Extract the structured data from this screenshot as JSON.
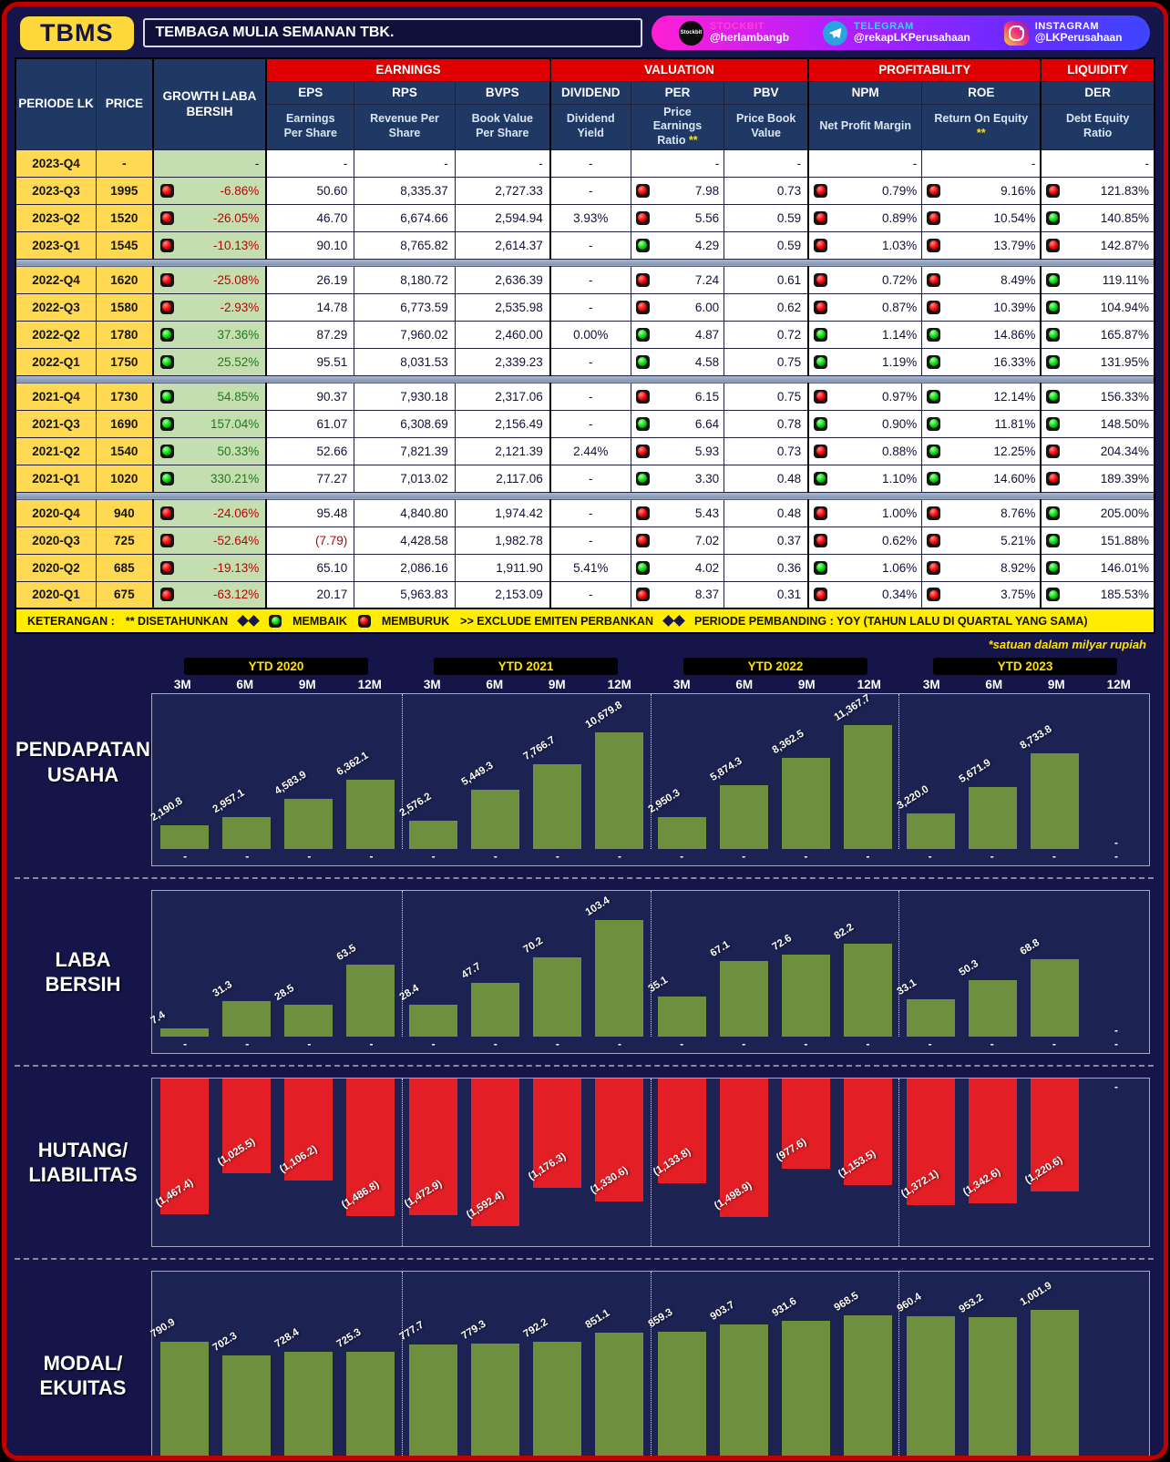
{
  "header": {
    "ticker": "TBMS",
    "company": "TEMBAGA MULIA SEMANAN TBK.",
    "socials": [
      {
        "platform": "STOCKBIT",
        "handle": "@herlambangb",
        "icon": "stockbit-icon"
      },
      {
        "platform": "TELEGRAM",
        "handle": "@rekapLKPerusahaan",
        "icon": "telegram-icon"
      },
      {
        "platform": "INSTAGRAM",
        "handle": "@LKPerusahaan",
        "icon": "instagram-icon"
      }
    ]
  },
  "table": {
    "corner": {
      "periode": "PERIODE LK",
      "price": "PRICE",
      "growth": "GROWTH LABA BERSIH"
    },
    "groups": [
      {
        "label": "EARNINGS"
      },
      {
        "label": "VALUATION"
      },
      {
        "label": "PROFITABILITY"
      },
      {
        "label": "LIQUIDITY"
      }
    ],
    "cols": [
      {
        "abbr": "EPS",
        "desc": "Earnings Per Share",
        "star": ""
      },
      {
        "abbr": "RPS",
        "desc": "Revenue Per Share",
        "star": ""
      },
      {
        "abbr": "BVPS",
        "desc": "Book Value Per Share",
        "star": ""
      },
      {
        "abbr": "DIVIDEND",
        "desc": "Dividend Yield",
        "star": ""
      },
      {
        "abbr": "PER",
        "desc": "Price Earnings Ratio",
        "star": " **"
      },
      {
        "abbr": "PBV",
        "desc": "Price Book Value",
        "star": ""
      },
      {
        "abbr": "NPM",
        "desc": "Net Profit Margin",
        "star": ""
      },
      {
        "abbr": "ROE",
        "desc": "Return On Equity",
        "star": " **"
      },
      {
        "abbr": "DER",
        "desc": "Debt Equity Ratio",
        "star": ""
      }
    ],
    "rows": [
      {
        "periode": "2023-Q4",
        "price": "-",
        "growth_icon": null,
        "growth": "-",
        "eps": "-",
        "rps": "-",
        "bvps": "-",
        "dividend": "-",
        "per_icon": null,
        "per": "-",
        "pbv": "-",
        "npm_icon": null,
        "npm": "-",
        "roe_icon": null,
        "roe": "-",
        "der_icon": null,
        "der": "-"
      },
      {
        "periode": "2023-Q3",
        "price": "1995",
        "growth_icon": "red",
        "growth": "-6.86%",
        "eps": "50.60",
        "rps": "8,335.37",
        "bvps": "2,727.33",
        "dividend": "-",
        "per_icon": "red",
        "per": "7.98",
        "pbv": "0.73",
        "npm_icon": "red",
        "npm": "0.79%",
        "roe_icon": "red",
        "roe": "9.16%",
        "der_icon": "red",
        "der": "121.83%"
      },
      {
        "periode": "2023-Q2",
        "price": "1520",
        "growth_icon": "red",
        "growth": "-26.05%",
        "eps": "46.70",
        "rps": "6,674.66",
        "bvps": "2,594.94",
        "dividend": "3.93%",
        "per_icon": "red",
        "per": "5.56",
        "pbv": "0.59",
        "npm_icon": "red",
        "npm": "0.89%",
        "roe_icon": "red",
        "roe": "10.54%",
        "der_icon": "green",
        "der": "140.85%"
      },
      {
        "periode": "2023-Q1",
        "price": "1545",
        "growth_icon": "red",
        "growth": "-10.13%",
        "eps": "90.10",
        "rps": "8,765.82",
        "bvps": "2,614.37",
        "dividend": "-",
        "per_icon": "green",
        "per": "4.29",
        "pbv": "0.59",
        "npm_icon": "red",
        "npm": "1.03%",
        "roe_icon": "red",
        "roe": "13.79%",
        "der_icon": "red",
        "der": "142.87%"
      },
      {
        "separator": true
      },
      {
        "periode": "2022-Q4",
        "price": "1620",
        "growth_icon": "red",
        "growth": "-25.08%",
        "eps": "26.19",
        "rps": "8,180.72",
        "bvps": "2,636.39",
        "dividend": "-",
        "per_icon": "red",
        "per": "7.24",
        "pbv": "0.61",
        "npm_icon": "red",
        "npm": "0.72%",
        "roe_icon": "red",
        "roe": "8.49%",
        "der_icon": "green",
        "der": "119.11%"
      },
      {
        "periode": "2022-Q3",
        "price": "1580",
        "growth_icon": "red",
        "growth": "-2.93%",
        "eps": "14.78",
        "rps": "6,773.59",
        "bvps": "2,535.98",
        "dividend": "-",
        "per_icon": "red",
        "per": "6.00",
        "pbv": "0.62",
        "npm_icon": "red",
        "npm": "0.87%",
        "roe_icon": "red",
        "roe": "10.39%",
        "der_icon": "green",
        "der": "104.94%"
      },
      {
        "periode": "2022-Q2",
        "price": "1780",
        "growth_icon": "green",
        "growth": "37.36%",
        "eps": "87.29",
        "rps": "7,960.02",
        "bvps": "2,460.00",
        "dividend": "0.00%",
        "per_icon": "green",
        "per": "4.87",
        "pbv": "0.72",
        "npm_icon": "green",
        "npm": "1.14%",
        "roe_icon": "green",
        "roe": "14.86%",
        "der_icon": "green",
        "der": "165.87%"
      },
      {
        "periode": "2022-Q1",
        "price": "1750",
        "growth_icon": "green",
        "growth": "25.52%",
        "eps": "95.51",
        "rps": "8,031.53",
        "bvps": "2,339.23",
        "dividend": "-",
        "per_icon": "green",
        "per": "4.58",
        "pbv": "0.75",
        "npm_icon": "green",
        "npm": "1.19%",
        "roe_icon": "green",
        "roe": "16.33%",
        "der_icon": "green",
        "der": "131.95%"
      },
      {
        "separator": true
      },
      {
        "periode": "2021-Q4",
        "price": "1730",
        "growth_icon": "green",
        "growth": "54.85%",
        "eps": "90.37",
        "rps": "7,930.18",
        "bvps": "2,317.06",
        "dividend": "-",
        "per_icon": "red",
        "per": "6.15",
        "pbv": "0.75",
        "npm_icon": "red",
        "npm": "0.97%",
        "roe_icon": "green",
        "roe": "12.14%",
        "der_icon": "green",
        "der": "156.33%"
      },
      {
        "periode": "2021-Q3",
        "price": "1690",
        "growth_icon": "green",
        "growth": "157.04%",
        "eps": "61.07",
        "rps": "6,308.69",
        "bvps": "2,156.49",
        "dividend": "-",
        "per_icon": "green",
        "per": "6.64",
        "pbv": "0.78",
        "npm_icon": "green",
        "npm": "0.90%",
        "roe_icon": "green",
        "roe": "11.81%",
        "der_icon": "green",
        "der": "148.50%"
      },
      {
        "periode": "2021-Q2",
        "price": "1540",
        "growth_icon": "green",
        "growth": "50.33%",
        "eps": "52.66",
        "rps": "7,821.39",
        "bvps": "2,121.39",
        "dividend": "2.44%",
        "per_icon": "red",
        "per": "5.93",
        "pbv": "0.73",
        "npm_icon": "red",
        "npm": "0.88%",
        "roe_icon": "green",
        "roe": "12.25%",
        "der_icon": "red",
        "der": "204.34%"
      },
      {
        "periode": "2021-Q1",
        "price": "1020",
        "growth_icon": "green",
        "growth": "330.21%",
        "eps": "77.27",
        "rps": "7,013.02",
        "bvps": "2,117.06",
        "dividend": "-",
        "per_icon": "green",
        "per": "3.30",
        "pbv": "0.48",
        "npm_icon": "green",
        "npm": "1.10%",
        "roe_icon": "green",
        "roe": "14.60%",
        "der_icon": "red",
        "der": "189.39%"
      },
      {
        "separator": true
      },
      {
        "periode": "2020-Q4",
        "price": "940",
        "growth_icon": "red",
        "growth": "-24.06%",
        "eps": "95.48",
        "rps": "4,840.80",
        "bvps": "1,974.42",
        "dividend": "-",
        "per_icon": "red",
        "per": "5.43",
        "pbv": "0.48",
        "npm_icon": "red",
        "npm": "1.00%",
        "roe_icon": "red",
        "roe": "8.76%",
        "der_icon": "green",
        "der": "205.00%"
      },
      {
        "periode": "2020-Q3",
        "price": "725",
        "growth_icon": "red",
        "growth": "-52.64%",
        "eps": "(7.79)",
        "rps": "4,428.58",
        "bvps": "1,982.78",
        "dividend": "-",
        "per_icon": "red",
        "per": "7.02",
        "pbv": "0.37",
        "npm_icon": "red",
        "npm": "0.62%",
        "roe_icon": "red",
        "roe": "5.21%",
        "der_icon": "green",
        "der": "151.88%"
      },
      {
        "periode": "2020-Q2",
        "price": "685",
        "growth_icon": "red",
        "growth": "-19.13%",
        "eps": "65.10",
        "rps": "2,086.16",
        "bvps": "1,911.90",
        "dividend": "5.41%",
        "per_icon": "green",
        "per": "4.02",
        "pbv": "0.36",
        "npm_icon": "green",
        "npm": "1.06%",
        "roe_icon": "red",
        "roe": "8.92%",
        "der_icon": "green",
        "der": "146.01%"
      },
      {
        "periode": "2020-Q1",
        "price": "675",
        "growth_icon": "red",
        "growth": "-63.12%",
        "eps": "20.17",
        "rps": "5,963.83",
        "bvps": "2,153.09",
        "dividend": "-",
        "per_icon": "red",
        "per": "8.37",
        "pbv": "0.31",
        "npm_icon": "red",
        "npm": "0.34%",
        "roe_icon": "red",
        "roe": "3.75%",
        "der_icon": "green",
        "der": "185.53%"
      }
    ]
  },
  "legend": {
    "keterangan": "KETERANGAN :",
    "disetahunkan": "** DISETAHUNKAN",
    "membaik": "MEMBAIK",
    "memburuk": "MEMBURUK",
    "exclude": ">> EXCLUDE EMITEN PERBANKAN",
    "pembanding": "PERIODE PEMBANDING : YOY (TAHUN LALU DI QUARTAL YANG SAMA)"
  },
  "charts": {
    "note": "*satuan dalam milyar rupiah",
    "group_labels": [
      "YTD 2020",
      "YTD 2021",
      "YTD 2022",
      "YTD 2023"
    ],
    "month_labels": [
      "3M",
      "6M",
      "9M",
      "12M"
    ]
  },
  "chart_data": [
    {
      "type": "bar",
      "title": "PENDAPATAN USAHA",
      "label_lines": [
        "PENDAPATAN",
        "USAHA"
      ],
      "direction": "up",
      "bar_color": "#6d8f3e",
      "groups": [
        "YTD 2020",
        "YTD 2021",
        "YTD 2022",
        "YTD 2023"
      ],
      "categories": [
        "3M",
        "6M",
        "9M",
        "12M"
      ],
      "unit": "milyar rupiah",
      "values": [
        2190.8,
        2957.1,
        4583.9,
        6362.1,
        2576.2,
        5449.3,
        7766.7,
        10679.8,
        2950.3,
        5874.3,
        8362.5,
        11367.7,
        3220.0,
        5671.9,
        8733.8,
        null
      ],
      "labels": [
        "2,190.8",
        "2,957.1",
        "4,583.9",
        "6,362.1",
        "2,576.2",
        "5,449.3",
        "7,766.7",
        "10,679.8",
        "2,950.3",
        "5,874.3",
        "8,362.5",
        "11,367.7",
        "3,220.0",
        "5,671.9",
        "8,733.8",
        "-"
      ]
    },
    {
      "type": "bar",
      "title": "LABA BERSIH",
      "label_lines": [
        "LABA",
        "BERSIH"
      ],
      "direction": "up",
      "bar_color": "#6d8f3e",
      "groups": [
        "YTD 2020",
        "YTD 2021",
        "YTD 2022",
        "YTD 2023"
      ],
      "categories": [
        "3M",
        "6M",
        "9M",
        "12M"
      ],
      "unit": "milyar rupiah",
      "values": [
        7.4,
        31.3,
        28.5,
        63.5,
        28.4,
        47.7,
        70.2,
        103.4,
        35.1,
        67.1,
        72.6,
        82.2,
        33.1,
        50.3,
        68.8,
        null
      ],
      "labels": [
        "7.4",
        "31.3",
        "28.5",
        "63.5",
        "28.4",
        "47.7",
        "70.2",
        "103.4",
        "35.1",
        "67.1",
        "72.6",
        "82.2",
        "33.1",
        "50.3",
        "68.8",
        "-"
      ]
    },
    {
      "type": "bar",
      "title": "HUTANG/LIABILITAS",
      "label_lines": [
        "HUTANG/",
        "LIABILITAS"
      ],
      "direction": "down",
      "bar_color": "#e41e25",
      "groups": [
        "YTD 2020",
        "YTD 2021",
        "YTD 2022",
        "YTD 2023"
      ],
      "categories": [
        "3M",
        "6M",
        "9M",
        "12M"
      ],
      "unit": "milyar rupiah",
      "values": [
        1467.4,
        1025.5,
        1106.2,
        1486.8,
        1472.9,
        1592.4,
        1176.3,
        1330.6,
        1133.8,
        1498.9,
        977.6,
        1153.5,
        1372.1,
        1342.6,
        1220.6,
        null
      ],
      "labels": [
        "(1,467.4)",
        "(1,025.5)",
        "(1,106.2)",
        "(1,486.8)",
        "(1,472.9)",
        "(1,592.4)",
        "(1,176.3)",
        "(1,330.6)",
        "(1,133.8)",
        "(1,498.9)",
        "(977.6)",
        "(1,153.5)",
        "(1,372.1)",
        "(1,342.6)",
        "(1,220.6)",
        "-"
      ]
    },
    {
      "type": "bar",
      "title": "MODAL/EKUITAS",
      "label_lines": [
        "MODAL/",
        "EKUITAS"
      ],
      "direction": "up",
      "bar_color": "#6d8f3e",
      "groups": [
        "YTD 2020",
        "YTD 2021",
        "YTD 2022",
        "YTD 2023"
      ],
      "categories": [
        "3M",
        "6M",
        "9M",
        "12M"
      ],
      "unit": "milyar rupiah",
      "values": [
        790.9,
        702.3,
        728.4,
        725.3,
        777.7,
        779.3,
        792.2,
        851.1,
        859.3,
        903.7,
        931.6,
        968.5,
        960.4,
        953.2,
        1001.9,
        null
      ],
      "labels": [
        "790.9",
        "702.3",
        "728.4",
        "725.3",
        "777.7",
        "779.3",
        "792.2",
        "851.1",
        "859.3",
        "903.7",
        "931.6",
        "968.5",
        "960.4",
        "953.2",
        "1,001.9",
        "-"
      ]
    }
  ]
}
